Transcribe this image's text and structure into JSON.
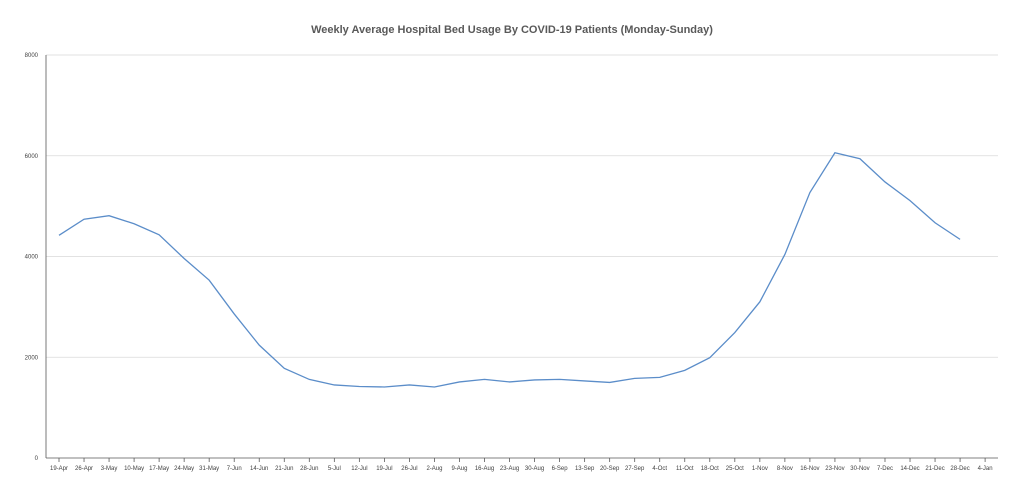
{
  "chart_data": {
    "type": "line",
    "title": "Weekly Average Hospital Bed Usage By COVID-19 Patients (Monday-Sunday)",
    "xlabel": "",
    "ylabel": "",
    "ylim": [
      0,
      8000
    ],
    "yticks": [
      "0",
      "2000",
      "4000",
      "6000",
      "8000"
    ],
    "grid": true,
    "legend": "none",
    "categories": [
      "19-Apr",
      "26-Apr",
      "3-May",
      "10-May",
      "17-May",
      "24-May",
      "31-May",
      "7-Jun",
      "14-Jun",
      "21-Jun",
      "28-Jun",
      "5-Jul",
      "12-Jul",
      "19-Jul",
      "26-Jul",
      "2-Aug",
      "9-Aug",
      "16-Aug",
      "23-Aug",
      "30-Aug",
      "6-Sep",
      "13-Sep",
      "20-Sep",
      "27-Sep",
      "4-Oct",
      "11-Oct",
      "18-Oct",
      "25-Oct",
      "1-Nov",
      "8-Nov",
      "16-Nov",
      "23-Nov",
      "30-Nov",
      "7-Dec",
      "14-Dec",
      "21-Dec",
      "28-Dec",
      "4-Jan"
    ],
    "series": [
      {
        "color": "#5b8dc9",
        "values": [
          4420,
          4740,
          4810,
          4650,
          4430,
          3960,
          3530,
          2860,
          2240,
          1780,
          1560,
          1450,
          1420,
          1410,
          1450,
          1410,
          1510,
          1560,
          1510,
          1550,
          1560,
          1530,
          1500,
          1580,
          1600,
          1740,
          1990,
          2490,
          3100,
          4040,
          5270,
          6060,
          5940,
          5480,
          5110,
          4670,
          4340,
          null
        ]
      }
    ]
  }
}
